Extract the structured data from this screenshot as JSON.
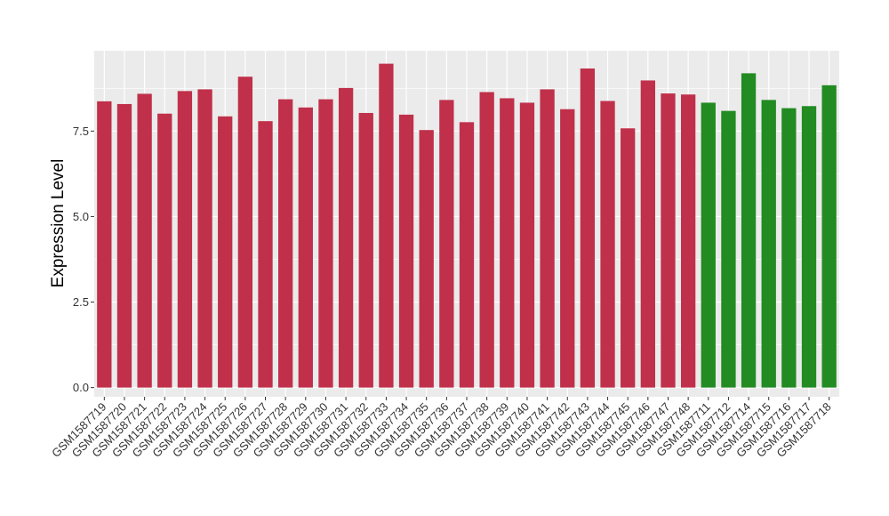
{
  "chart_data": {
    "type": "bar",
    "title": "",
    "xlabel": "",
    "ylabel": "Expression Level",
    "ylim": [
      -0.27,
      9.85
    ],
    "yticks": [
      "0.0",
      "2.5",
      "5.0",
      "7.5"
    ],
    "grid": true,
    "legend": "none",
    "colors": {
      "group1": "#c0304a",
      "group2": "#228b22",
      "panel": "#ebebeb",
      "gridline": "#ffffff"
    },
    "categories": [
      "GSM1587719",
      "GSM1587720",
      "GSM1587721",
      "GSM1587722",
      "GSM1587723",
      "GSM1587724",
      "GSM1587725",
      "GSM1587726",
      "GSM1587727",
      "GSM1587728",
      "GSM1587729",
      "GSM1587730",
      "GSM1587731",
      "GSM1587732",
      "GSM1587733",
      "GSM1587734",
      "GSM1587735",
      "GSM1587736",
      "GSM1587737",
      "GSM1587738",
      "GSM1587739",
      "GSM1587740",
      "GSM1587741",
      "GSM1587742",
      "GSM1587743",
      "GSM1587744",
      "GSM1587745",
      "GSM1587746",
      "GSM1587747",
      "GSM1587748",
      "GSM1587711",
      "GSM1587712",
      "GSM1587714",
      "GSM1587715",
      "GSM1587716",
      "GSM1587717",
      "GSM1587718"
    ],
    "values": [
      8.37,
      8.29,
      8.59,
      8.01,
      8.67,
      8.72,
      7.93,
      9.09,
      7.79,
      8.43,
      8.19,
      8.43,
      8.76,
      8.03,
      9.47,
      7.98,
      7.53,
      8.41,
      7.76,
      8.64,
      8.46,
      8.33,
      8.72,
      8.14,
      9.33,
      8.38,
      7.58,
      8.98,
      8.6,
      8.57,
      8.33,
      8.09,
      9.19,
      8.41,
      8.17,
      8.23,
      8.84
    ],
    "groups": [
      1,
      1,
      1,
      1,
      1,
      1,
      1,
      1,
      1,
      1,
      1,
      1,
      1,
      1,
      1,
      1,
      1,
      1,
      1,
      1,
      1,
      1,
      1,
      1,
      1,
      1,
      1,
      1,
      1,
      1,
      2,
      2,
      2,
      2,
      2,
      2,
      2
    ]
  }
}
